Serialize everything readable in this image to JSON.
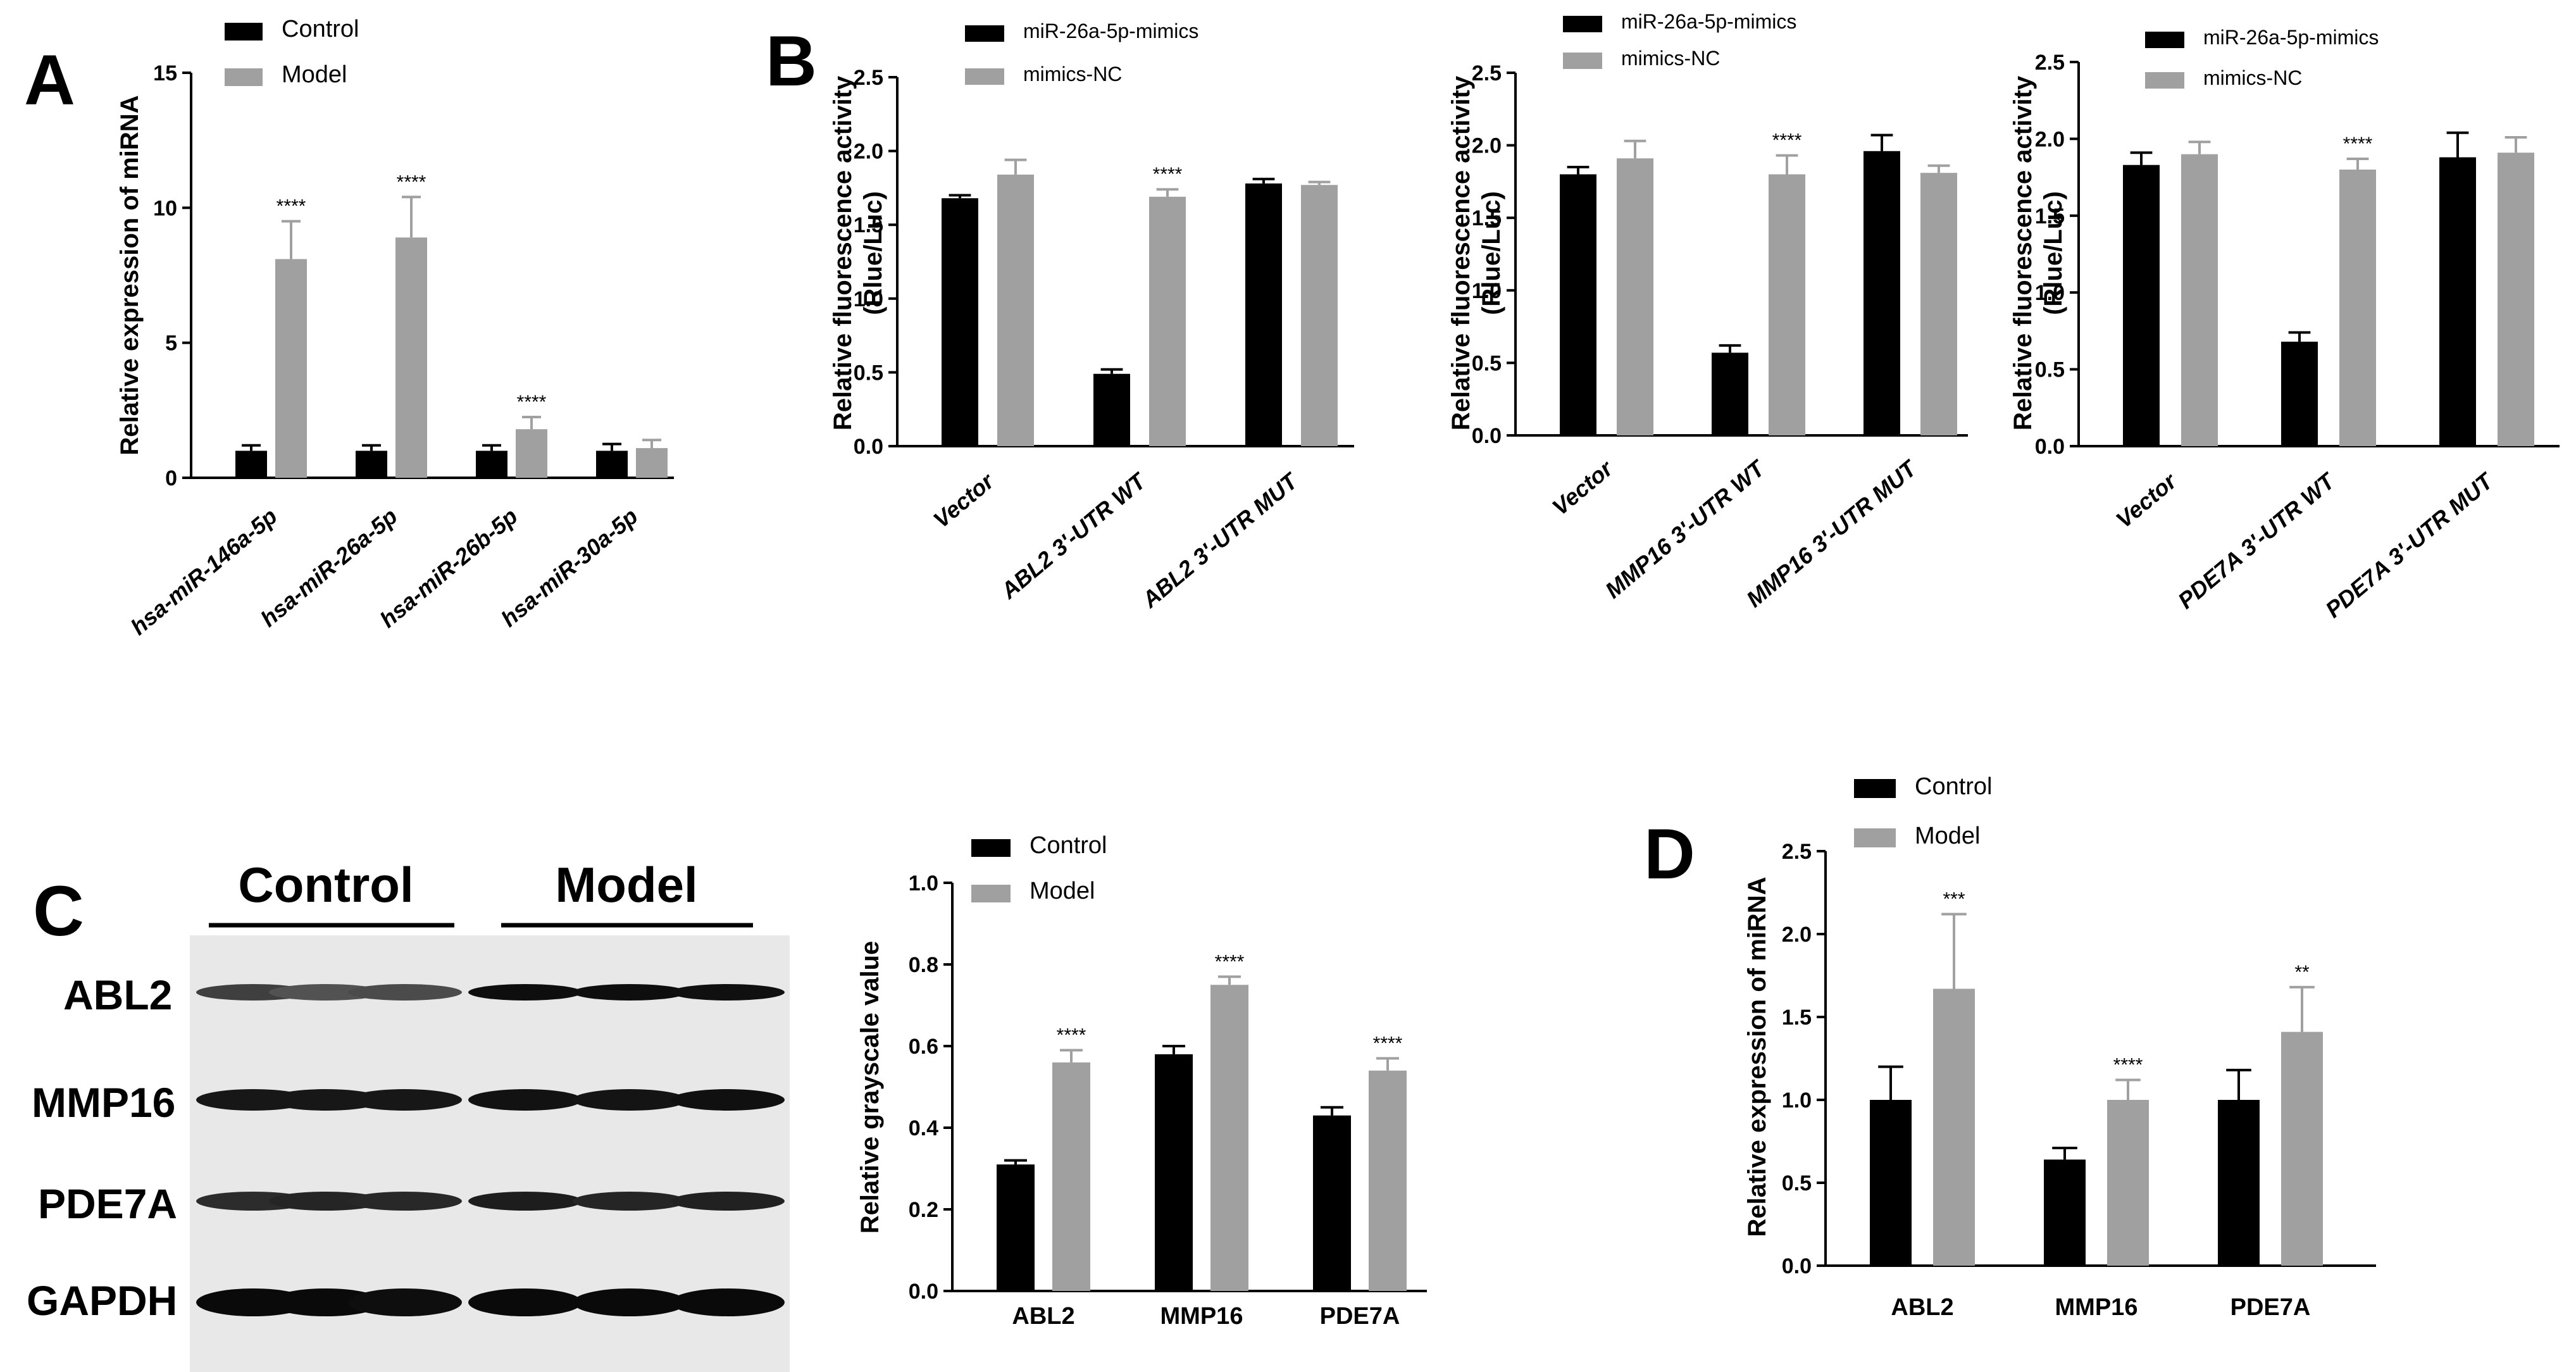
{
  "figure": {
    "panel_labels": [
      "A",
      "B",
      "C",
      "D"
    ]
  },
  "chart_data": [
    {
      "id": "A",
      "type": "bar",
      "title": "",
      "ylabel": "Relative expression of miRNA",
      "xlabel": "",
      "categories": [
        "hsa-miR-146a-5p",
        "hsa-miR-26a-5p",
        "hsa-miR-26b-5p",
        "hsa-miR-30a-5p"
      ],
      "series": [
        {
          "name": "Control",
          "color": "#000000",
          "values": [
            1.0,
            1.0,
            1.0,
            1.0
          ],
          "errors": [
            0.2,
            0.2,
            0.2,
            0.25
          ]
        },
        {
          "name": "Model",
          "color": "#a0a0a0",
          "values": [
            8.1,
            8.9,
            1.8,
            1.1
          ],
          "errors": [
            1.4,
            1.5,
            0.45,
            0.3
          ]
        }
      ],
      "significance": [
        "****",
        "****",
        "****",
        ""
      ],
      "ylim": [
        0,
        15
      ],
      "yticks": [
        0,
        5,
        10,
        15
      ],
      "tick_labels": [
        "0",
        "5",
        "10",
        "15"
      ]
    },
    {
      "id": "B1",
      "type": "bar",
      "title": "",
      "ylabel": "Relative fluorescence activity (Rlue/Luc)",
      "ylabel_lines": [
        "Relative fluorescence activity",
        "(Rlue/Luc)"
      ],
      "xlabel": "",
      "categories": [
        "Vector",
        "ABL2  3'-UTR WT",
        "ABL2  3'-UTR MUT"
      ],
      "series": [
        {
          "name": "miR-26a-5p-mimics",
          "color": "#000000",
          "values": [
            1.68,
            0.49,
            1.78
          ],
          "errors": [
            0.02,
            0.03,
            0.03
          ]
        },
        {
          "name": "mimics-NC",
          "color": "#a0a0a0",
          "values": [
            1.84,
            1.69,
            1.77
          ],
          "errors": [
            0.1,
            0.05,
            0.02
          ]
        }
      ],
      "significance": [
        "",
        "****",
        ""
      ],
      "ylim": [
        0,
        2.5
      ],
      "yticks": [
        0,
        0.5,
        1.0,
        1.5,
        2.0,
        2.5
      ],
      "tick_labels": [
        "0.0",
        "0.5",
        "1.0",
        "1.5",
        "2.0",
        "2.5"
      ]
    },
    {
      "id": "B2",
      "type": "bar",
      "title": "",
      "ylabel": "Relative fluorescence activity (Rlue/Luc)",
      "ylabel_lines": [
        "Relative fluorescence activity",
        "(Rlue/Luc)"
      ],
      "xlabel": "",
      "categories": [
        "Vector",
        "MMP16  3'-UTR WT",
        "MMP16  3'-UTR MUT"
      ],
      "series": [
        {
          "name": "miR-26a-5p-mimics",
          "color": "#000000",
          "values": [
            1.8,
            0.57,
            1.96
          ],
          "errors": [
            0.05,
            0.05,
            0.11
          ]
        },
        {
          "name": "mimics-NC",
          "color": "#a0a0a0",
          "values": [
            1.91,
            1.8,
            1.81
          ],
          "errors": [
            0.12,
            0.13,
            0.05
          ]
        }
      ],
      "significance": [
        "",
        "****",
        ""
      ],
      "ylim": [
        0,
        2.5
      ],
      "yticks": [
        0,
        0.5,
        1.0,
        1.5,
        2.0,
        2.5
      ],
      "tick_labels": [
        "0.0",
        "0.5",
        "1.0",
        "1.5",
        "2.0",
        "2.5"
      ]
    },
    {
      "id": "B3",
      "type": "bar",
      "title": "",
      "ylabel": "Relative fluorescence activity (Rlue/Luc)",
      "ylabel_lines": [
        "Relative fluorescence activity",
        "(Rlue/Luc)"
      ],
      "xlabel": "",
      "categories": [
        "Vector",
        "PDE7A   3'-UTR WT",
        "PDE7A   3'-UTR MUT"
      ],
      "series": [
        {
          "name": "miR-26a-5p-mimics",
          "color": "#000000",
          "values": [
            1.83,
            0.68,
            1.88
          ],
          "errors": [
            0.08,
            0.06,
            0.16
          ]
        },
        {
          "name": "mimics-NC",
          "color": "#a0a0a0",
          "values": [
            1.9,
            1.8,
            1.91
          ],
          "errors": [
            0.08,
            0.07,
            0.1
          ]
        }
      ],
      "significance": [
        "",
        "****",
        ""
      ],
      "ylim": [
        0,
        2.5
      ],
      "yticks": [
        0,
        0.5,
        1.0,
        1.5,
        2.0,
        2.5
      ],
      "tick_labels": [
        "0.0",
        "0.5",
        "1.0",
        "1.5",
        "2.0",
        "2.5"
      ]
    },
    {
      "id": "C",
      "type": "bar",
      "title": "",
      "ylabel": "Relative grayscale value",
      "xlabel": "",
      "categories": [
        "ABL2",
        "MMP16",
        "PDE7A"
      ],
      "series": [
        {
          "name": "Control",
          "color": "#000000",
          "values": [
            0.31,
            0.58,
            0.43
          ],
          "errors": [
            0.01,
            0.02,
            0.02
          ]
        },
        {
          "name": "Model",
          "color": "#a0a0a0",
          "values": [
            0.56,
            0.75,
            0.54
          ],
          "errors": [
            0.03,
            0.02,
            0.03
          ]
        }
      ],
      "significance": [
        "****",
        "****",
        "****"
      ],
      "ylim": [
        0,
        1.0
      ],
      "yticks": [
        0,
        0.2,
        0.4,
        0.6,
        0.8,
        1.0
      ],
      "tick_labels": [
        "0.0",
        "0.2",
        "0.4",
        "0.6",
        "0.8",
        "1.0"
      ]
    },
    {
      "id": "D",
      "type": "bar",
      "title": "",
      "ylabel": "Relative expression of miRNA",
      "xlabel": "",
      "categories": [
        "ABL2",
        "MMP16",
        "PDE7A"
      ],
      "series": [
        {
          "name": "Control",
          "color": "#000000",
          "values": [
            1.0,
            0.64,
            1.0
          ],
          "errors": [
            0.2,
            0.07,
            0.18
          ]
        },
        {
          "name": "Model",
          "color": "#a0a0a0",
          "values": [
            1.67,
            1.0,
            1.41
          ],
          "errors": [
            0.45,
            0.12,
            0.27
          ]
        }
      ],
      "significance": [
        "***",
        "****",
        "**"
      ],
      "ylim": [
        0,
        2.5
      ],
      "yticks": [
        0,
        0.5,
        1.0,
        1.5,
        2.0,
        2.5
      ],
      "tick_labels": [
        "0.0",
        "0.5",
        "1.0",
        "1.5",
        "2.0",
        "2.5"
      ]
    }
  ],
  "western_blot": {
    "group_labels": [
      "Control",
      "Model"
    ],
    "row_labels": [
      "ABL2",
      "MMP16",
      "PDE7A",
      "GAPDH"
    ],
    "band_intensity": [
      [
        0.72,
        0.62,
        0.66,
        0.98,
        0.98,
        0.97
      ],
      [
        0.93,
        0.93,
        0.93,
        0.96,
        0.95,
        0.97
      ],
      [
        0.82,
        0.86,
        0.84,
        0.9,
        0.86,
        0.88
      ],
      [
        1.0,
        1.0,
        0.98,
        1.0,
        1.0,
        1.0
      ]
    ]
  }
}
